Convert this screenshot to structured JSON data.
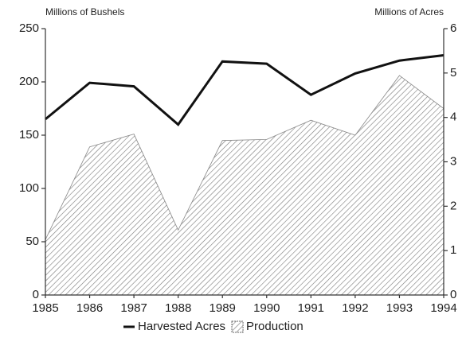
{
  "chart_data": {
    "type": "line-area",
    "y_label": "Millions of Bushels",
    "y2_label": "Millions of Acres",
    "categories": [
      "1985",
      "1986",
      "1987",
      "1988",
      "1989",
      "1990",
      "1991",
      "1992",
      "1993",
      "1994"
    ],
    "series": [
      {
        "name": "Harvested Acres",
        "color": "#111111",
        "axis": "y2",
        "type": "line",
        "values": [
          3.96,
          4.78,
          4.7,
          3.84,
          5.26,
          5.21,
          4.51,
          4.99,
          5.28,
          5.4
        ]
      },
      {
        "name": "Production",
        "color": "#888888",
        "axis": "y",
        "type": "area",
        "values": [
          52,
          139,
          151,
          61,
          145,
          146,
          164,
          150,
          206,
          175
        ]
      }
    ],
    "ylim": [
      0,
      250
    ],
    "yticks": [
      0,
      50,
      100,
      150,
      200,
      250
    ],
    "y2lim": [
      0,
      6
    ],
    "y2ticks": [
      0,
      1,
      2,
      3,
      4,
      5,
      6
    ],
    "legend": "bottom"
  }
}
